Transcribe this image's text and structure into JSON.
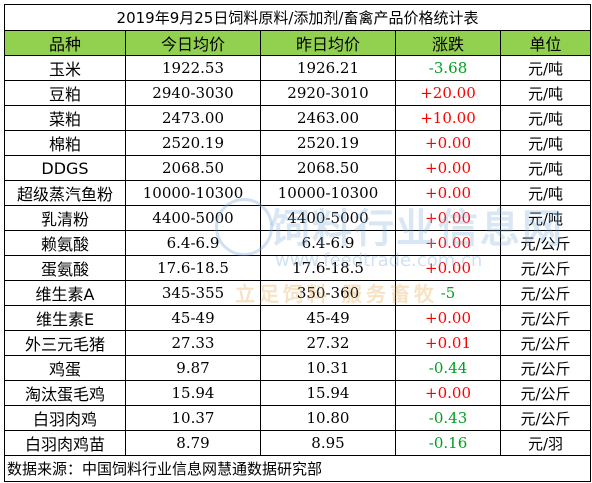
{
  "title": "2019年9月25日饲料原料/添加剂/畜禽产品价格统计表",
  "headers": [
    "品种",
    "今日均价",
    "昨日均价",
    "涨跌",
    "单位"
  ],
  "rows": [
    {
      "name": "玉米",
      "today": "1922.53",
      "yesterday": "1926.21",
      "change": "-3.68",
      "unit": "元/吨"
    },
    {
      "name": "豆粕",
      "today": "2940-3030",
      "yesterday": "2920-3010",
      "change": "+20.00",
      "unit": "元/吨"
    },
    {
      "name": "菜粕",
      "today": "2473.00",
      "yesterday": "2463.00",
      "change": "+10.00",
      "unit": "元/吨"
    },
    {
      "name": "棉粕",
      "today": "2520.19",
      "yesterday": "2520.19",
      "change": "+0.00",
      "unit": "元/吨"
    },
    {
      "name": "DDGS",
      "today": "2068.50",
      "yesterday": "2068.50",
      "change": "+0.00",
      "unit": "元/吨"
    },
    {
      "name": "超级蒸汽鱼粉",
      "today": "10000-10300",
      "yesterday": "10000-10300",
      "change": "+0.00",
      "unit": "元/吨"
    },
    {
      "name": "乳清粉",
      "today": "4400-5000",
      "yesterday": "4400-5000",
      "change": "+0.00",
      "unit": "元/吨"
    },
    {
      "name": "赖氨酸",
      "today": "6.4-6.9",
      "yesterday": "6.4-6.9",
      "change": "+0.00",
      "unit": "元/公斤"
    },
    {
      "name": "蛋氨酸",
      "today": "17.6-18.5",
      "yesterday": "17.6-18.5",
      "change": "+0.00",
      "unit": "元/公斤"
    },
    {
      "name": "维生素A",
      "today": "345-355",
      "yesterday": "350-360",
      "change": "-5",
      "unit": "元/公斤"
    },
    {
      "name": "维生素E",
      "today": "45-49",
      "yesterday": "45-49",
      "change": "+0.00",
      "unit": "元/公斤"
    },
    {
      "name": "外三元毛猪",
      "today": "27.33",
      "yesterday": "27.32",
      "change": "+0.01",
      "unit": "元/公斤"
    },
    {
      "name": "鸡蛋",
      "today": "9.87",
      "yesterday": "10.31",
      "change": "-0.44",
      "unit": "元/公斤"
    },
    {
      "name": "淘汰蛋毛鸡",
      "today": "15.94",
      "yesterday": "15.94",
      "change": "+0.00",
      "unit": "元/公斤"
    },
    {
      "name": "白羽肉鸡",
      "today": "10.37",
      "yesterday": "10.80",
      "change": "-0.43",
      "unit": "元/公斤"
    },
    {
      "name": "白羽肉鸡苗",
      "today": "8.79",
      "yesterday": "8.95",
      "change": "-0.16",
      "unit": "元/羽"
    }
  ],
  "source": "数据来源：中国饲料行业信息网慧通数据研究部",
  "watermark": {
    "line1": "饲料行业信息网",
    "line2": "www.feedtrade.com.cn",
    "line3": "立足饲料  服务畜牧"
  },
  "colors": {
    "header_bg": "#92d050",
    "up": "#ff0000",
    "down": "#00a020"
  }
}
